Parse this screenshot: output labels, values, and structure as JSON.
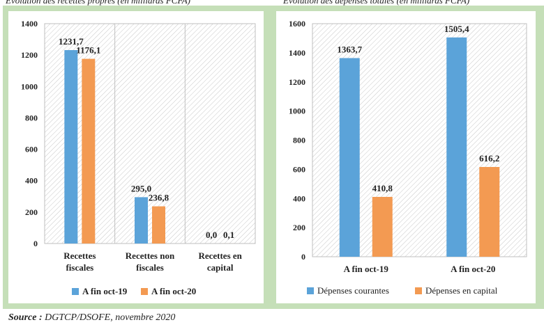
{
  "footer": {
    "source_label": "Source :",
    "source_text": "DGTCP/DSOFE, novembre 2020"
  },
  "colors": {
    "blue": "#5ba3d9",
    "orange": "#f39a52",
    "green_frame": "#c5dfb8"
  },
  "chart_data": [
    {
      "type": "bar",
      "title": "Evolution des recettes propres (en milliards FCFA)",
      "categories": [
        [
          "Recettes",
          "fiscales"
        ],
        [
          "Recettes non",
          "fiscales"
        ],
        [
          "Recettes en",
          "capital"
        ]
      ],
      "series": [
        {
          "name": "A fin oct-19",
          "color": "#5ba3d9",
          "values": [
            1231.7,
            295.0,
            0.0
          ],
          "labels": [
            "1231,7",
            "295,0",
            "0,0"
          ]
        },
        {
          "name": "A fin oct-20",
          "color": "#f39a52",
          "values": [
            1176.1,
            236.8,
            0.1
          ],
          "labels": [
            "1176,1",
            "236,8",
            "0,1"
          ]
        }
      ],
      "ylim": [
        0,
        1400
      ],
      "yticks": [
        0,
        200,
        400,
        600,
        800,
        1000,
        1200,
        1400
      ],
      "grid": true,
      "legend": "bottom"
    },
    {
      "type": "bar",
      "title": "Evolution des dépenses totales (en milliards FCFA)",
      "categories": [
        [
          "A fin oct-19"
        ],
        [
          "A fin oct-20"
        ]
      ],
      "series": [
        {
          "name": "Dépenses courantes",
          "color": "#5ba3d9",
          "values": [
            1363.7,
            1505.4
          ],
          "labels": [
            "1363,7",
            "1505,4"
          ]
        },
        {
          "name": "Dépenses en capital",
          "color": "#f39a52",
          "values": [
            410.8,
            616.2
          ],
          "labels": [
            "410,8",
            "616,2"
          ]
        }
      ],
      "ylim": [
        0,
        1600
      ],
      "yticks": [
        0,
        200,
        400,
        600,
        800,
        1000,
        1200,
        1400,
        1600
      ],
      "grid": false,
      "legend": "bottom"
    }
  ]
}
